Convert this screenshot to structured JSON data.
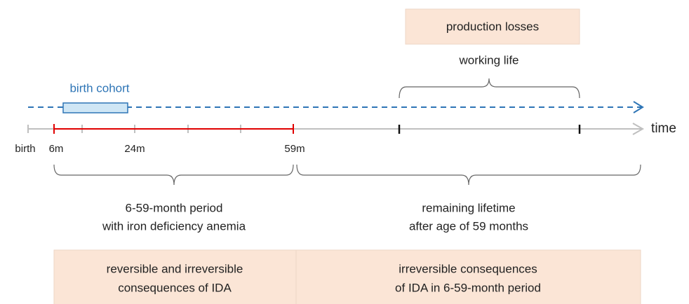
{
  "top_box": "production losses",
  "working_life": "working life",
  "birth_cohort": "birth cohort",
  "axis_label": "time",
  "axis_ticks": [
    "birth",
    "6m",
    "24m",
    "59m"
  ],
  "left_period": [
    "6-59-month period",
    "with iron deficiency anemia"
  ],
  "right_period": [
    "remaining lifetime",
    "after age of 59 months"
  ],
  "bottom_boxes": [
    [
      "reversible and irreversible",
      "consequences of IDA"
    ],
    [
      "irreversible consequences",
      "of IDA in 6-59-month period"
    ]
  ]
}
